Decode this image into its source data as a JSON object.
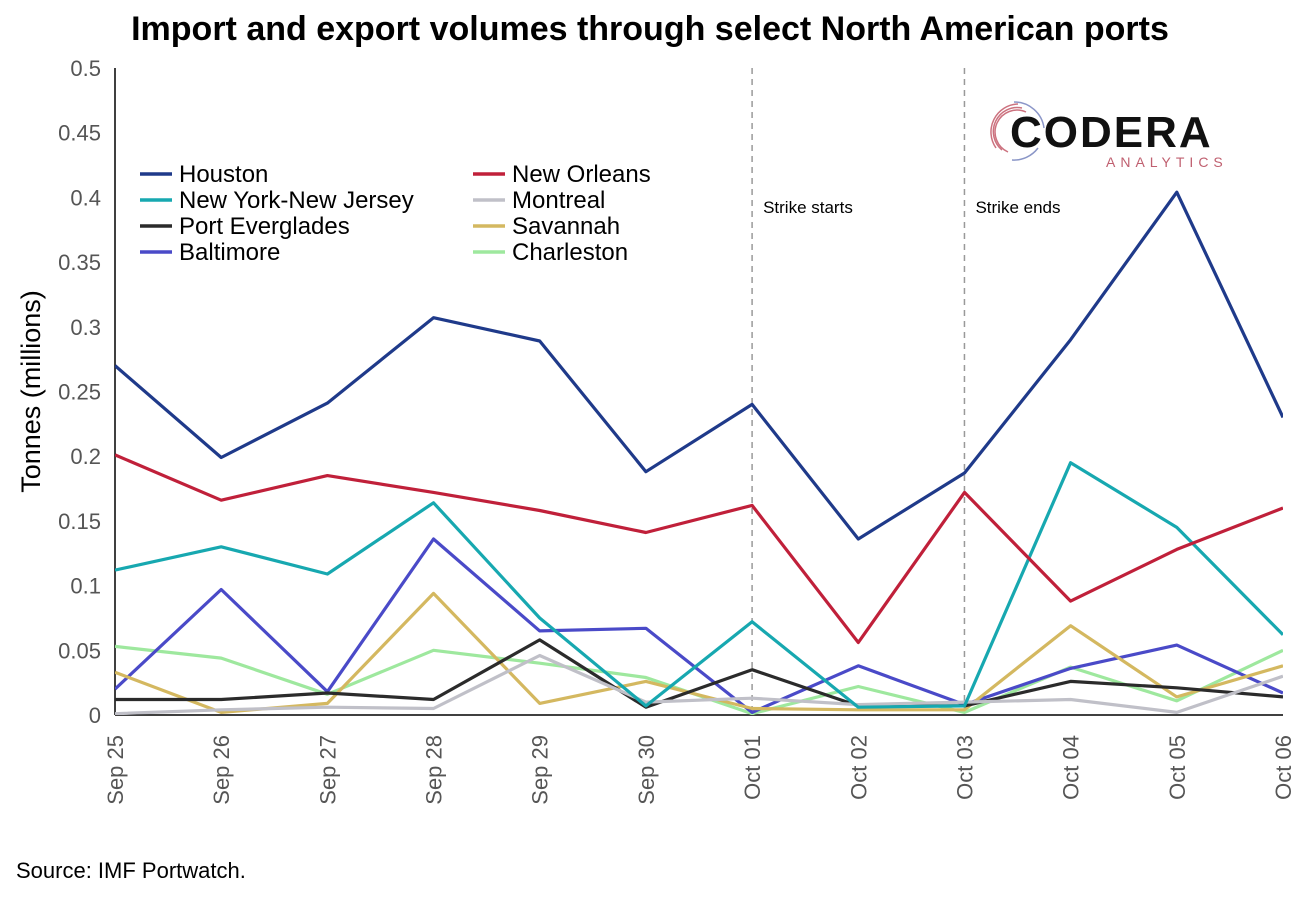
{
  "chart_data": {
    "type": "line",
    "title": "Import and export volumes through select North American ports",
    "ylabel": "Tonnes (millions)",
    "xlabel": "",
    "ylim": [
      0,
      0.5
    ],
    "yticks": [
      "0",
      "0.05",
      "0.1",
      "0.15",
      "0.2",
      "0.25",
      "0.3",
      "0.35",
      "0.4",
      "0.45",
      "0.5"
    ],
    "categories": [
      "Sep 25",
      "Sep 26",
      "Sep 27",
      "Sep 28",
      "Sep 29",
      "Sep 30",
      "Oct 01",
      "Oct 02",
      "Oct 03",
      "Oct 04",
      "Oct 05",
      "Oct 06"
    ],
    "legend_position": "top-left",
    "grid": false,
    "series": [
      {
        "name": "Houston",
        "color": "#1f3a8a",
        "values": [
          0.27,
          0.199,
          0.241,
          0.307,
          0.289,
          0.188,
          0.24,
          0.136,
          0.187,
          0.29,
          0.404,
          0.23
        ]
      },
      {
        "name": "New Orleans",
        "color": "#c0203a",
        "values": [
          0.201,
          0.166,
          0.185,
          0.172,
          0.158,
          0.141,
          0.162,
          0.056,
          0.172,
          0.088,
          0.128,
          0.16
        ]
      },
      {
        "name": "New York-New Jersey",
        "color": "#17a8b0",
        "values": [
          0.112,
          0.13,
          0.109,
          0.164,
          0.075,
          0.007,
          0.072,
          0.006,
          0.007,
          0.195,
          0.145,
          0.062
        ]
      },
      {
        "name": "Montreal",
        "color": "#c0c0c8",
        "values": [
          0.001,
          0.004,
          0.006,
          0.005,
          0.046,
          0.01,
          0.013,
          0.008,
          0.01,
          0.012,
          0.002,
          0.03
        ]
      },
      {
        "name": "Port Everglades",
        "color": "#2b2b2b",
        "values": [
          0.012,
          0.012,
          0.017,
          0.012,
          0.058,
          0.006,
          0.035,
          0.007,
          0.007,
          0.026,
          0.021,
          0.014
        ]
      },
      {
        "name": "Savannah",
        "color": "#d4b860",
        "values": [
          0.033,
          0.002,
          0.009,
          0.094,
          0.009,
          0.026,
          0.005,
          0.004,
          0.004,
          0.069,
          0.014,
          0.038
        ]
      },
      {
        "name": "Baltimore",
        "color": "#4a4ac8",
        "values": [
          0.02,
          0.097,
          0.018,
          0.136,
          0.065,
          0.067,
          0.002,
          0.038,
          0.008,
          0.036,
          0.054,
          0.017
        ]
      },
      {
        "name": "Charleston",
        "color": "#9ee89e",
        "values": [
          0.053,
          0.044,
          0.016,
          0.05,
          0.04,
          0.029,
          0.001,
          0.022,
          0.002,
          0.037,
          0.011,
          0.05
        ]
      }
    ],
    "annotations": [
      {
        "text": "Strike starts",
        "x": "Oct 01"
      },
      {
        "text": "Strike ends",
        "x": "Oct 03"
      }
    ]
  },
  "source": "Source: IMF Portwatch.",
  "logo": {
    "word": "CODERA",
    "sub": "ANALYTICS"
  }
}
